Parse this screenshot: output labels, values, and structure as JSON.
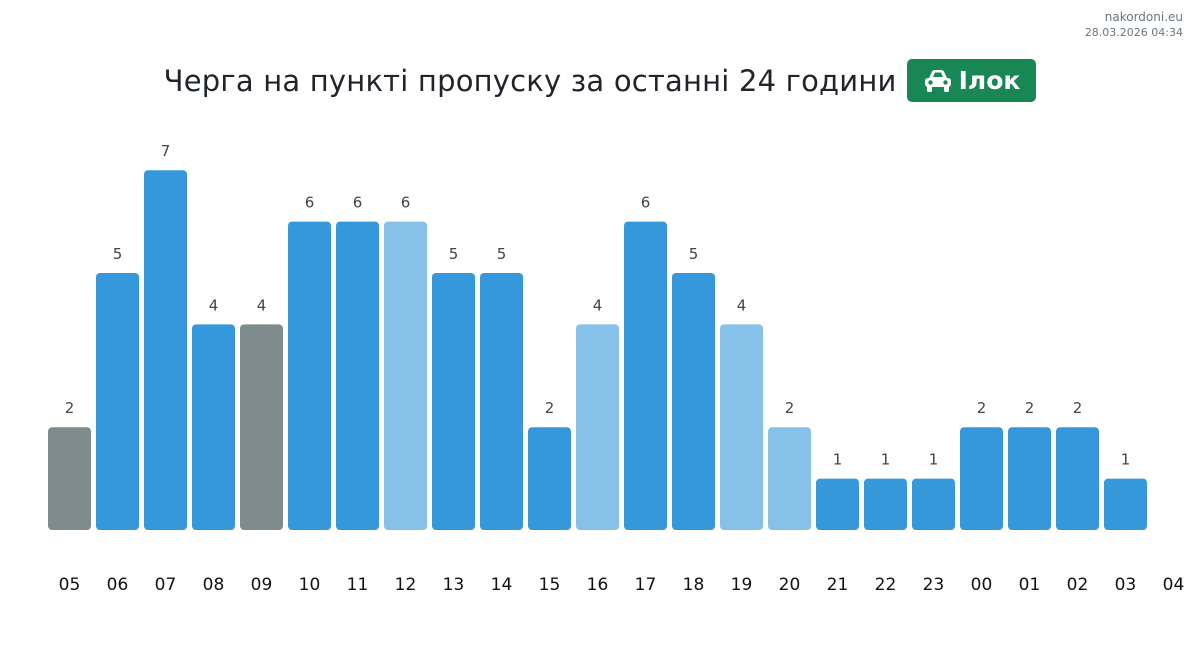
{
  "brand": {
    "site": "nakordoni.eu",
    "timestamp": "28.03.2026 04:34"
  },
  "header": {
    "title": "Черга на пункті пропуску за останні 24 години",
    "badge_label": "Ілок",
    "badge_icon": "car-icon",
    "badge_color": "#198754"
  },
  "colors": {
    "default": "#3498db",
    "light": "#85c1e9",
    "gray": "#7f8c8d"
  },
  "chart_data": {
    "type": "bar",
    "title": "Черга на пункті пропуску за останні 24 години",
    "xlabel": "",
    "ylabel": "",
    "ylim": [
      0,
      7
    ],
    "grid": false,
    "legend": "none",
    "categories": [
      "05",
      "06",
      "07",
      "08",
      "09",
      "10",
      "11",
      "12",
      "13",
      "14",
      "15",
      "16",
      "17",
      "18",
      "19",
      "20",
      "21",
      "22",
      "23",
      "00",
      "01",
      "02",
      "03"
    ],
    "tick_labels": [
      "05",
      "06",
      "07",
      "08",
      "09",
      "10",
      "11",
      "12",
      "13",
      "14",
      "15",
      "16",
      "17",
      "18",
      "19",
      "20",
      "21",
      "22",
      "23",
      "00",
      "01",
      "02",
      "03",
      "04"
    ],
    "values": [
      2,
      5,
      7,
      4,
      4,
      6,
      6,
      6,
      5,
      5,
      2,
      4,
      6,
      5,
      4,
      2,
      1,
      1,
      1,
      2,
      2,
      2,
      1
    ],
    "bar_styles": [
      "gray",
      "default",
      "default",
      "default",
      "gray",
      "default",
      "default",
      "light",
      "default",
      "default",
      "default",
      "light",
      "default",
      "default",
      "light",
      "light",
      "default",
      "default",
      "default",
      "default",
      "default",
      "default",
      "default"
    ]
  }
}
